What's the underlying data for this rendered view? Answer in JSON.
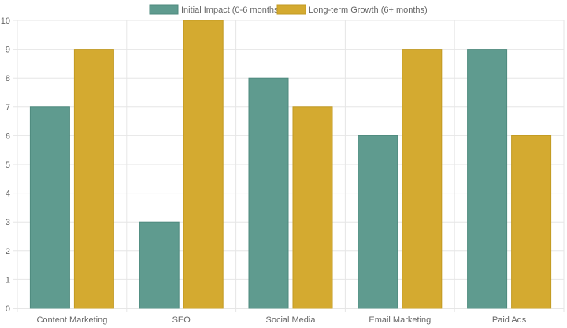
{
  "chart_data": {
    "type": "bar",
    "categories": [
      "Content Marketing",
      "SEO",
      "Social Media",
      "Email Marketing",
      "Paid Ads"
    ],
    "series": [
      {
        "name": "Initial Impact (0-6 months)",
        "values": [
          7,
          3,
          8,
          6,
          9
        ],
        "color": "#5f9b8f",
        "border": "#4e8a7e"
      },
      {
        "name": "Long-term Growth (6+ months)",
        "values": [
          9,
          10,
          7,
          9,
          6
        ],
        "color": "#d4aa30",
        "border": "#c29a22"
      }
    ],
    "ylim": [
      0,
      10
    ],
    "yticks": [
      "0",
      "1",
      "2",
      "3",
      "4",
      "5",
      "6",
      "7",
      "8",
      "9",
      "10"
    ],
    "grid": true,
    "legend_position": "top-center"
  }
}
